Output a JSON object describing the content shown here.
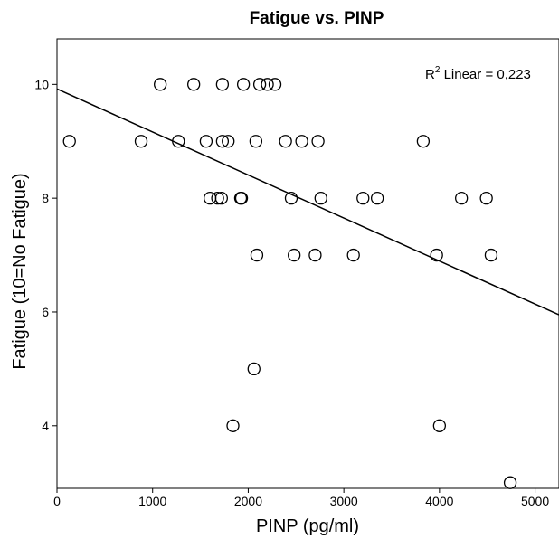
{
  "chart_data": {
    "type": "scatter",
    "title": "Fatigue vs. PINP",
    "xlabel": "PINP (pg/ml)",
    "ylabel": "Fatigue (10=No Fatigue)",
    "xlim": [
      0,
      5250
    ],
    "ylim": [
      2.9,
      10.8
    ],
    "xticks": [
      0,
      1000,
      2000,
      3000,
      4000,
      5000
    ],
    "yticks": [
      4,
      6,
      8,
      10
    ],
    "grid": false,
    "fit_line": {
      "type": "linear",
      "label_prefix": "R",
      "label_sup": "2",
      "label_text": " Linear = 0,223",
      "y_at_xmin": 9.92,
      "y_at_xmax": 5.95
    },
    "points": [
      {
        "x": 130,
        "y": 9
      },
      {
        "x": 880,
        "y": 9
      },
      {
        "x": 1080,
        "y": 10
      },
      {
        "x": 1270,
        "y": 9
      },
      {
        "x": 1430,
        "y": 10
      },
      {
        "x": 1560,
        "y": 9
      },
      {
        "x": 1600,
        "y": 8
      },
      {
        "x": 1680,
        "y": 8
      },
      {
        "x": 1720,
        "y": 8
      },
      {
        "x": 1730,
        "y": 10
      },
      {
        "x": 1730,
        "y": 9
      },
      {
        "x": 1790,
        "y": 9
      },
      {
        "x": 1840,
        "y": 4
      },
      {
        "x": 1920,
        "y": 8
      },
      {
        "x": 1930,
        "y": 8
      },
      {
        "x": 1950,
        "y": 10
      },
      {
        "x": 2060,
        "y": 5
      },
      {
        "x": 2080,
        "y": 9
      },
      {
        "x": 2090,
        "y": 7
      },
      {
        "x": 2120,
        "y": 10
      },
      {
        "x": 2200,
        "y": 10
      },
      {
        "x": 2280,
        "y": 10
      },
      {
        "x": 2390,
        "y": 9
      },
      {
        "x": 2450,
        "y": 8
      },
      {
        "x": 2480,
        "y": 7
      },
      {
        "x": 2560,
        "y": 9
      },
      {
        "x": 2700,
        "y": 7
      },
      {
        "x": 2730,
        "y": 9
      },
      {
        "x": 2760,
        "y": 8
      },
      {
        "x": 3100,
        "y": 7
      },
      {
        "x": 3200,
        "y": 8
      },
      {
        "x": 3350,
        "y": 8
      },
      {
        "x": 3830,
        "y": 9
      },
      {
        "x": 3970,
        "y": 7
      },
      {
        "x": 4000,
        "y": 4
      },
      {
        "x": 4230,
        "y": 8
      },
      {
        "x": 4490,
        "y": 8
      },
      {
        "x": 4540,
        "y": 7
      },
      {
        "x": 4740,
        "y": 3
      }
    ]
  }
}
